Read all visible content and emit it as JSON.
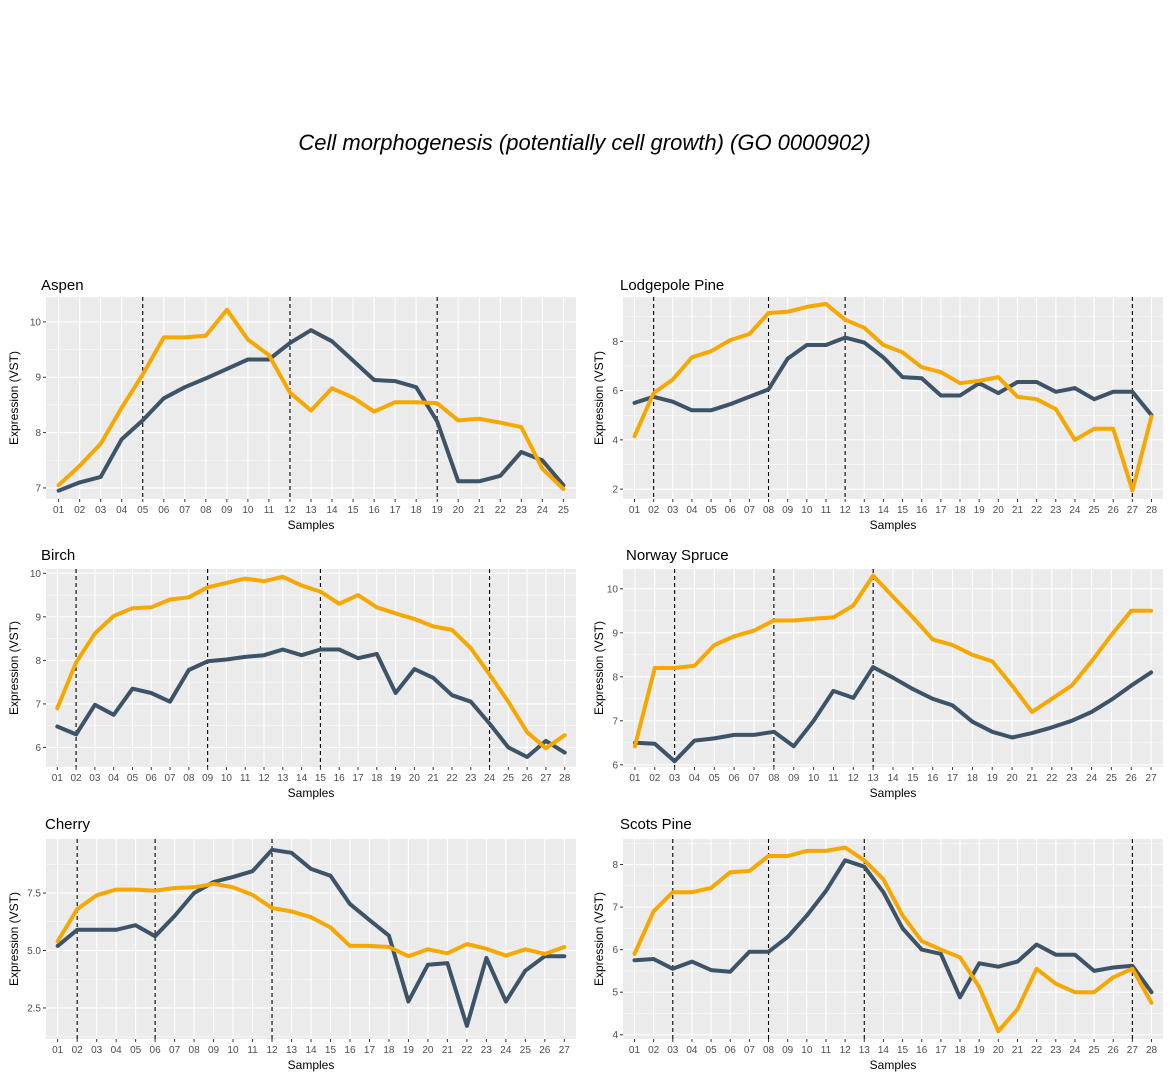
{
  "title": "Cell morphogenesis (potentially cell growth) (GO 0000902)",
  "colors": {
    "series_a": "#f6a800",
    "series_b": "#3d5368",
    "panel_bg": "#ebebeb",
    "grid": "#ffffff"
  },
  "chart_data": [
    {
      "type": "line",
      "title": "Aspen",
      "xlabel": "Samples",
      "ylabel": "Expression (VST)",
      "categories": [
        "01",
        "02",
        "03",
        "04",
        "05",
        "06",
        "07",
        "08",
        "09",
        "10",
        "11",
        "12",
        "13",
        "14",
        "15",
        "16",
        "17",
        "18",
        "19",
        "20",
        "21",
        "22",
        "23",
        "24",
        "25"
      ],
      "ylim": [
        6.8,
        10.45
      ],
      "yticks": [
        7,
        8,
        9,
        10
      ],
      "vlines": [
        "05",
        "12",
        "19"
      ],
      "grid": true,
      "series": [
        {
          "values": [
            7.05,
            7.4,
            7.8,
            8.45,
            9.05,
            9.72,
            9.72,
            9.75,
            10.22,
            9.68,
            9.4,
            8.72,
            8.4,
            8.8,
            8.63,
            8.38,
            8.55,
            8.55,
            8.53,
            8.22,
            8.25,
            8.18,
            8.1,
            7.35,
            6.98
          ]
        },
        {
          "values": [
            6.95,
            7.1,
            7.2,
            7.88,
            8.22,
            8.62,
            8.82,
            8.98,
            9.15,
            9.32,
            9.32,
            9.62,
            9.85,
            9.65,
            9.3,
            8.95,
            8.93,
            8.82,
            8.2,
            7.12,
            7.12,
            7.22,
            7.65,
            7.5,
            7.05
          ]
        }
      ]
    },
    {
      "type": "line",
      "title": "Lodgepole Pine",
      "xlabel": "Samples",
      "ylabel": "Expression (VST)",
      "categories": [
        "01",
        "02",
        "03",
        "04",
        "05",
        "06",
        "07",
        "08",
        "09",
        "10",
        "11",
        "12",
        "13",
        "14",
        "15",
        "16",
        "17",
        "18",
        "19",
        "20",
        "21",
        "22",
        "23",
        "24",
        "25",
        "26",
        "27",
        "28"
      ],
      "ylim": [
        1.6,
        9.8
      ],
      "yticks": [
        2,
        4,
        6,
        8
      ],
      "vlines": [
        "02",
        "08",
        "12",
        "27"
      ],
      "grid": true,
      "series": [
        {
          "values": [
            4.15,
            5.9,
            6.45,
            7.35,
            7.6,
            8.05,
            8.3,
            9.15,
            9.2,
            9.4,
            9.52,
            8.88,
            8.55,
            7.85,
            7.55,
            6.95,
            6.75,
            6.3,
            6.4,
            6.55,
            5.75,
            5.65,
            5.25,
            4.0,
            4.45,
            4.45,
            1.95,
            4.95
          ]
        },
        {
          "values": [
            5.5,
            5.75,
            5.55,
            5.2,
            5.2,
            5.45,
            5.75,
            6.05,
            7.3,
            7.85,
            7.85,
            8.15,
            7.95,
            7.35,
            6.55,
            6.5,
            5.8,
            5.8,
            6.3,
            5.9,
            6.35,
            6.35,
            5.95,
            6.1,
            5.65,
            5.95,
            5.95,
            5.0
          ]
        }
      ]
    },
    {
      "type": "line",
      "title": "Birch",
      "xlabel": "Samples",
      "ylabel": "Expression (VST)",
      "categories": [
        "01",
        "02",
        "03",
        "04",
        "05",
        "06",
        "07",
        "08",
        "09",
        "10",
        "11",
        "12",
        "13",
        "14",
        "15",
        "16",
        "17",
        "18",
        "19",
        "20",
        "21",
        "22",
        "23",
        "24",
        "25",
        "26",
        "27",
        "28"
      ],
      "ylim": [
        5.55,
        10.1
      ],
      "yticks": [
        6,
        7,
        8,
        9,
        10
      ],
      "vlines": [
        "02",
        "09",
        "15",
        "24"
      ],
      "grid": true,
      "series": [
        {
          "values": [
            6.9,
            7.95,
            8.62,
            9.02,
            9.2,
            9.22,
            9.4,
            9.45,
            9.68,
            9.78,
            9.88,
            9.82,
            9.92,
            9.72,
            9.58,
            9.3,
            9.5,
            9.22,
            9.08,
            8.95,
            8.78,
            8.7,
            8.28,
            7.68,
            7.05,
            6.35,
            5.98,
            6.28
          ]
        },
        {
          "values": [
            6.48,
            6.3,
            6.98,
            6.75,
            7.35,
            7.25,
            7.05,
            7.78,
            7.98,
            8.02,
            8.08,
            8.12,
            8.25,
            8.12,
            8.25,
            8.25,
            8.05,
            8.15,
            7.25,
            7.8,
            7.6,
            7.2,
            7.05,
            6.55,
            6.0,
            5.78,
            6.15,
            5.88
          ]
        }
      ]
    },
    {
      "type": "line",
      "title": "Norway Spruce",
      "xlabel": "Samples",
      "ylabel": "Expression (VST)",
      "categories": [
        "01",
        "02",
        "03",
        "04",
        "05",
        "06",
        "07",
        "08",
        "09",
        "10",
        "11",
        "12",
        "13",
        "14",
        "15",
        "16",
        "17",
        "18",
        "19",
        "20",
        "21",
        "22",
        "23",
        "24",
        "25",
        "26",
        "27"
      ],
      "ylim": [
        5.95,
        10.45
      ],
      "yticks": [
        6,
        7,
        8,
        9,
        10
      ],
      "vlines": [
        "03",
        "08",
        "13"
      ],
      "grid": true,
      "series": [
        {
          "values": [
            6.42,
            8.2,
            8.2,
            8.25,
            8.72,
            8.92,
            9.05,
            9.28,
            9.28,
            9.32,
            9.35,
            9.62,
            10.3,
            9.82,
            9.35,
            8.85,
            8.72,
            8.5,
            8.35,
            7.8,
            7.2,
            7.5,
            7.8,
            8.35,
            8.95,
            9.5,
            9.5
          ]
        },
        {
          "values": [
            6.5,
            6.48,
            6.08,
            6.55,
            6.6,
            6.68,
            6.68,
            6.75,
            6.42,
            7.0,
            7.68,
            7.52,
            8.22,
            7.98,
            7.72,
            7.5,
            7.35,
            6.98,
            6.75,
            6.62,
            6.72,
            6.85,
            7.0,
            7.2,
            7.48,
            7.8,
            8.1
          ]
        }
      ]
    },
    {
      "type": "line",
      "title": "Cherry",
      "xlabel": "Samples",
      "ylabel": "Expression (VST)",
      "categories": [
        "01",
        "02",
        "03",
        "04",
        "05",
        "06",
        "07",
        "08",
        "09",
        "10",
        "11",
        "12",
        "13",
        "14",
        "15",
        "16",
        "17",
        "18",
        "19",
        "20",
        "21",
        "22",
        "23",
        "24",
        "25",
        "26",
        "27"
      ],
      "ylim": [
        1.15,
        9.85
      ],
      "yticks": [
        2.5,
        5.0,
        7.5
      ],
      "vlines": [
        "02",
        "06",
        "12"
      ],
      "grid": true,
      "series": [
        {
          "values": [
            5.4,
            6.8,
            7.4,
            7.65,
            7.65,
            7.6,
            7.72,
            7.75,
            7.9,
            7.75,
            7.42,
            6.85,
            6.7,
            6.45,
            6.0,
            5.2,
            5.2,
            5.15,
            4.75,
            5.05,
            4.88,
            5.28,
            5.08,
            4.78,
            5.05,
            4.85,
            5.15
          ]
        },
        {
          "values": [
            5.2,
            5.9,
            5.9,
            5.9,
            6.1,
            5.62,
            6.5,
            7.5,
            7.98,
            8.2,
            8.45,
            9.38,
            9.25,
            8.55,
            8.25,
            7.02,
            6.32,
            5.65,
            2.78,
            4.38,
            4.45,
            1.72,
            4.68,
            2.78,
            4.12,
            4.75,
            4.75
          ]
        }
      ]
    },
    {
      "type": "line",
      "title": "Scots Pine",
      "xlabel": "Samples",
      "ylabel": "Expression (VST)",
      "categories": [
        "01",
        "02",
        "03",
        "04",
        "05",
        "06",
        "07",
        "08",
        "09",
        "10",
        "11",
        "12",
        "13",
        "14",
        "15",
        "16",
        "17",
        "18",
        "19",
        "20",
        "21",
        "22",
        "23",
        "24",
        "25",
        "26",
        "27",
        "28"
      ],
      "ylim": [
        3.9,
        8.6
      ],
      "yticks": [
        4,
        5,
        6,
        7,
        8
      ],
      "vlines": [
        "03",
        "08",
        "13",
        "27"
      ],
      "grid": true,
      "series": [
        {
          "values": [
            5.9,
            6.9,
            7.35,
            7.35,
            7.45,
            7.82,
            7.85,
            8.2,
            8.2,
            8.32,
            8.32,
            8.4,
            8.1,
            7.65,
            6.8,
            6.2,
            6.0,
            5.82,
            5.12,
            4.08,
            4.6,
            5.55,
            5.2,
            5.0,
            5.0,
            5.35,
            5.55,
            4.75
          ]
        },
        {
          "values": [
            5.75,
            5.78,
            5.55,
            5.72,
            5.52,
            5.48,
            5.95,
            5.95,
            6.3,
            6.8,
            7.38,
            8.1,
            7.95,
            7.35,
            6.5,
            6.0,
            5.9,
            4.88,
            5.68,
            5.6,
            5.72,
            6.12,
            5.88,
            5.88,
            5.5,
            5.58,
            5.62,
            5.0
          ]
        }
      ]
    }
  ]
}
